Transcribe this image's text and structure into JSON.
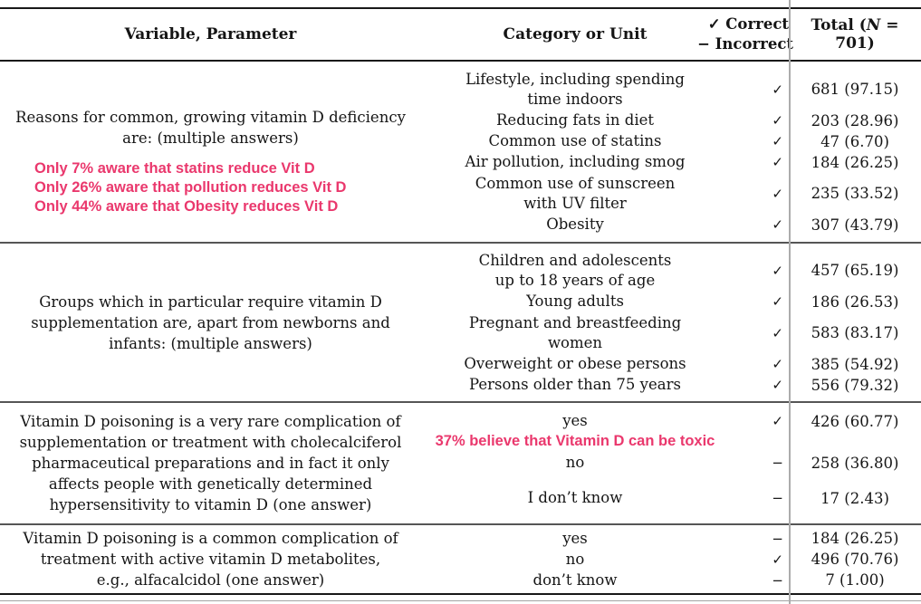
{
  "accent_color": "#ea386d",
  "header": {
    "variable": "Variable, Parameter",
    "category": "Category or Unit",
    "correct_line": "✓ Correct",
    "incorrect_line": "− Incorrect",
    "total_prefix": "Total (",
    "total_n": "N",
    "total_suffix": " = 701)"
  },
  "sections": [
    {
      "variable": "Reasons for common, growing vitamin D deficiency\nare: (multiple answers)",
      "annotations": [
        "Only 7% aware that statins reduce Vit D",
        "Only 26% aware that pollution reduces Vit D",
        "Only 44% aware that Obesity reduces Vit D"
      ],
      "rows": [
        {
          "category": "Lifestyle, including spending\ntime indoors",
          "mark": "✓",
          "total": "681 (97.15)"
        },
        {
          "category": "Reducing fats in diet",
          "mark": "✓",
          "total": "203 (28.96)"
        },
        {
          "category": "Common use of statins",
          "mark": "✓",
          "total": "47 (6.70)"
        },
        {
          "category": "Air pollution, including smog",
          "mark": "✓",
          "total": "184 (26.25)"
        },
        {
          "category": "Common use of sunscreen\nwith UV filter",
          "mark": "✓",
          "total": "235 (33.52)"
        },
        {
          "category": "Obesity",
          "mark": "✓",
          "total": "307 (43.79)"
        }
      ]
    },
    {
      "variable": "Groups which in particular require vitamin D\nsupplementation are, apart from newborns and\ninfants: (multiple answers)",
      "rows": [
        {
          "category": "Children and adolescents\nup to 18 years of age",
          "mark": "✓",
          "total": "457 (65.19)"
        },
        {
          "category": "Young adults",
          "mark": "✓",
          "total": "186 (26.53)"
        },
        {
          "category": "Pregnant and breastfeeding\nwomen",
          "mark": "✓",
          "total": "583 (83.17)"
        },
        {
          "category": "Overweight or obese persons",
          "mark": "✓",
          "total": "385 (54.92)"
        },
        {
          "category": "Persons older than 75 years",
          "mark": "✓",
          "total": "556 (79.32)"
        }
      ]
    },
    {
      "variable": "Vitamin D poisoning is a very rare complication of\nsupplementation or treatment with cholecalciferol\npharmaceutical preparations and in fact it only\naffects people with genetically determined\nhypersensitivity to vitamin D (one answer)",
      "annotation": "37% believe that Vitamin D can be toxic",
      "rows": [
        {
          "category": "yes",
          "mark": "✓",
          "total": "426 (60.77)"
        },
        {
          "category": "no",
          "mark": "−",
          "total": "258 (36.80)"
        },
        {
          "category": "I don’t know",
          "mark": "−",
          "total": "17 (2.43)"
        }
      ]
    },
    {
      "variable": "Vitamin D poisoning is a common complication of\ntreatment with active vitamin D metabolites,\ne.g., alfacalcidol (one answer)",
      "rows": [
        {
          "category": "yes",
          "mark": "−",
          "total": "184 (26.25)"
        },
        {
          "category": "no",
          "mark": "✓",
          "total": "496 (70.76)"
        },
        {
          "category": "don’t know",
          "mark": "−",
          "total": "7 (1.00)"
        }
      ]
    }
  ]
}
